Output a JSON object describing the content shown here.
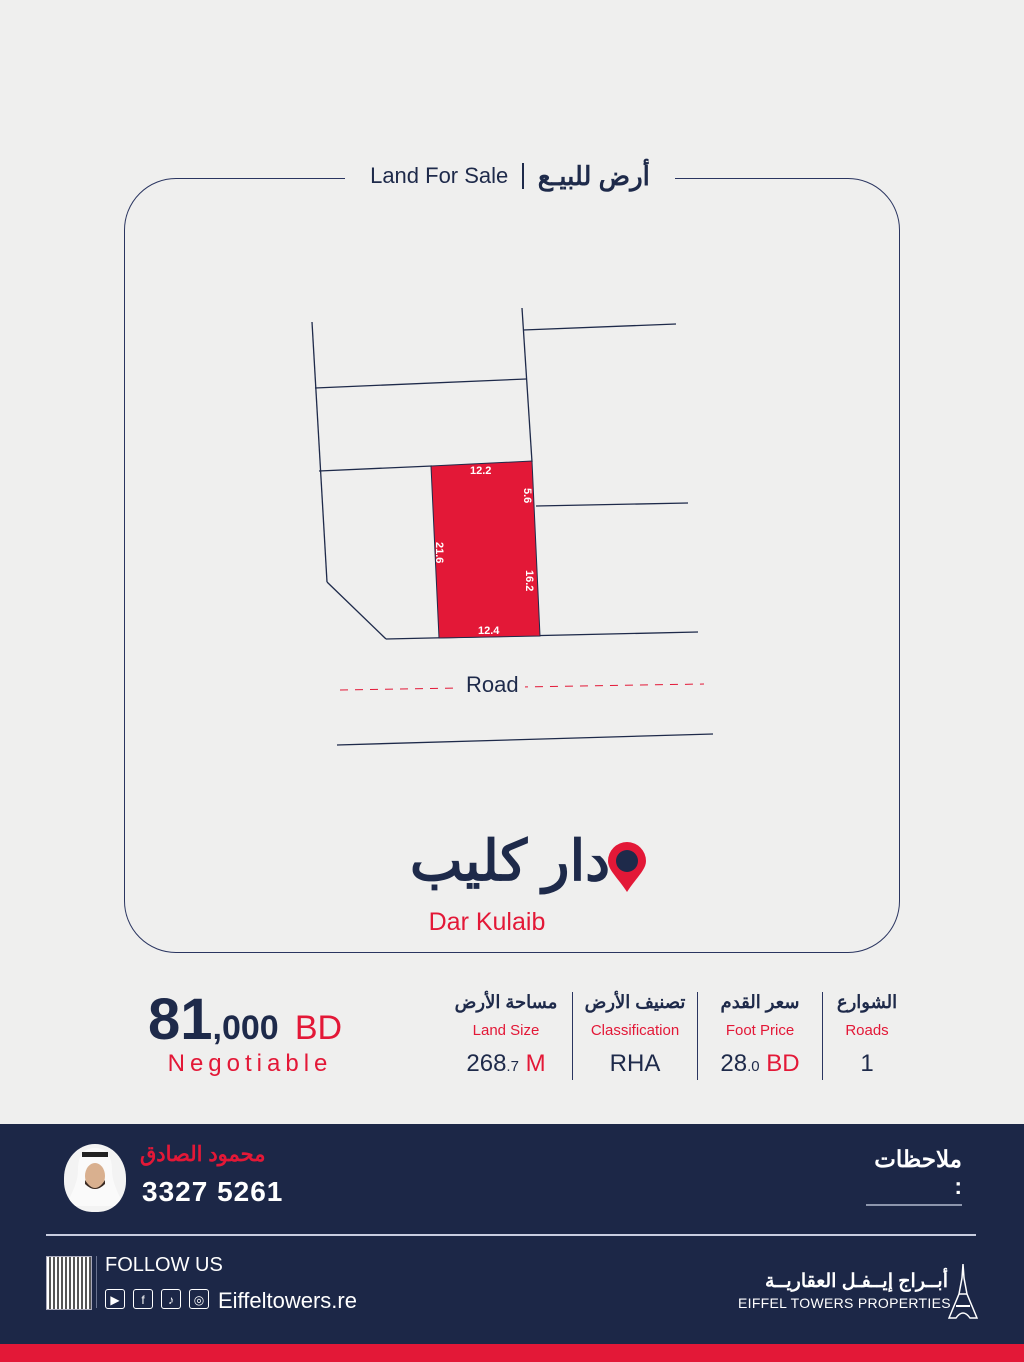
{
  "header": {
    "title_en": "Land For Sale",
    "title_ar": "أرض للبيـع"
  },
  "plot": {
    "dimensions": {
      "top": "12.2",
      "right_upper": "5.6",
      "left": "21.6",
      "right": "16.2",
      "bottom": "12.4"
    },
    "road_label": "Road",
    "plot_color": "#e31837"
  },
  "location": {
    "name_ar": "دار كليب",
    "name_en": "Dar Kulaib",
    "icon": "map-pin-icon"
  },
  "price": {
    "main": "81",
    "rest": ",000",
    "currency": "BD",
    "note": "Negotiable"
  },
  "stats": [
    {
      "ar": "مساحة الأرض",
      "en": "Land Size",
      "value": "268",
      "decimal": ".7",
      "unit": "M"
    },
    {
      "ar": "تصنيف الأرض",
      "en": "Classification",
      "value": "RHA",
      "decimal": "",
      "unit": ""
    },
    {
      "ar": "سعر القدم",
      "en": "Foot Price",
      "value": "28",
      "decimal": ".0",
      "unit": "BD"
    },
    {
      "ar": "الشوارع",
      "en": "Roads",
      "value": "1",
      "decimal": "",
      "unit": ""
    }
  ],
  "agent": {
    "name": "محمود الصادق",
    "phone": "3327 5261"
  },
  "notes_label": "ملاحظات :",
  "social": {
    "follow_label": "FOLLOW US",
    "website": "Eiffeltowers.re",
    "icons": [
      "youtube-icon",
      "facebook-icon",
      "tiktok-icon",
      "instagram-icon"
    ]
  },
  "brand": {
    "name_ar": "أبــراج إيــفـل العقاريــة",
    "name_en": "EIFFEL TOWERS PROPERTIES"
  },
  "colors": {
    "navy": "#1c2747",
    "red": "#e31837",
    "background": "#efefee"
  }
}
